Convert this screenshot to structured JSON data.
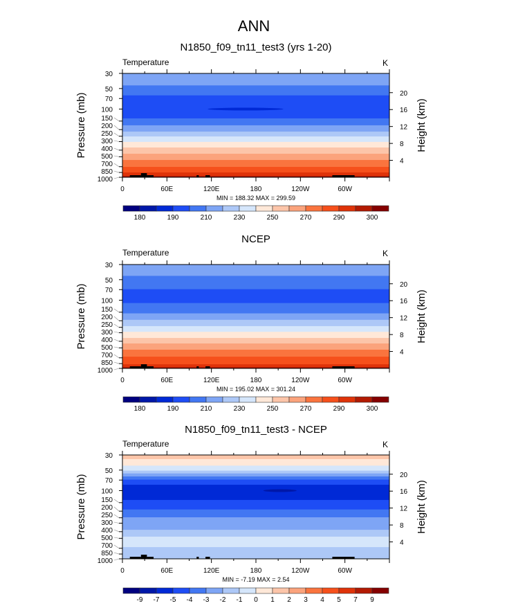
{
  "title": "ANN",
  "colors": [
    "#00007f",
    "#0017a8",
    "#0029d6",
    "#1e4df5",
    "#4277f2",
    "#7ea5f5",
    "#adc8f7",
    "#d5e6fb",
    "#ffe8d8",
    "#fcc5a9",
    "#fba37c",
    "#fa743e",
    "#f6501b",
    "#df3309",
    "#b31a03",
    "#850000"
  ],
  "chart_data": [
    {
      "type": "heatmap",
      "title": "N1850_f09_tn11_test3 (yrs 1-20)",
      "variable": "Temperature",
      "units": "K",
      "ylabel": "Pressure (mb)",
      "ylabel_right": "Height (km)",
      "stats": "MIN = 188.32  MAX = 299.59",
      "ylim": [
        1000,
        30
      ],
      "xlim": [
        0,
        360
      ],
      "bands": [
        [
          30,
          45,
          5
        ],
        [
          45,
          63,
          4
        ],
        [
          63,
          137,
          3
        ],
        [
          137,
          173,
          4
        ],
        [
          173,
          214,
          5
        ],
        [
          214,
          252,
          6
        ],
        [
          252,
          303,
          7
        ],
        [
          303,
          366,
          8
        ],
        [
          366,
          452,
          9
        ],
        [
          452,
          558,
          10
        ],
        [
          558,
          705,
          11
        ],
        [
          705,
          850,
          12
        ],
        [
          850,
          955,
          13
        ],
        [
          955,
          1000,
          14
        ]
      ],
      "features": [
        {
          "lon": [
            115,
            217
          ],
          "p": 100,
          "color": 2
        }
      ],
      "colorbar_labels": [
        "180",
        "190",
        "210",
        "230",
        "250",
        "270",
        "290",
        "300"
      ],
      "colorbar_step": 2
    },
    {
      "type": "heatmap",
      "title": "NCEP",
      "variable": "Temperature",
      "units": "K",
      "ylabel": "Pressure (mb)",
      "ylabel_right": "Height (km)",
      "stats": "MIN = 195.02  MAX = 301.24",
      "ylim": [
        1000,
        30
      ],
      "xlim": [
        0,
        360
      ],
      "bands": [
        [
          30,
          44,
          5
        ],
        [
          44,
          69,
          4
        ],
        [
          69,
          110,
          3
        ],
        [
          110,
          156,
          4
        ],
        [
          156,
          194,
          5
        ],
        [
          194,
          240,
          6
        ],
        [
          240,
          291,
          7
        ],
        [
          291,
          358,
          8
        ],
        [
          358,
          431,
          9
        ],
        [
          431,
          532,
          10
        ],
        [
          532,
          673,
          11
        ],
        [
          673,
          870,
          12
        ],
        [
          870,
          955,
          13
        ],
        [
          955,
          1000,
          14
        ]
      ],
      "features": [],
      "colorbar_labels": [
        "180",
        "190",
        "210",
        "230",
        "250",
        "270",
        "290",
        "300"
      ],
      "colorbar_step": 2
    },
    {
      "type": "heatmap",
      "title": "N1850_f09_tn11_test3 - NCEP",
      "variable": "Temperature",
      "units": "K",
      "ylabel": "Pressure (mb)",
      "ylabel_right": "Height (km)",
      "stats": "MIN =  -7.19  MAX =   2.54",
      "ylim": [
        1000,
        30
      ],
      "xlim": [
        0,
        360
      ],
      "bands": [
        [
          30,
          34.5,
          9
        ],
        [
          34.5,
          43,
          8
        ],
        [
          43,
          51,
          7
        ],
        [
          51,
          56,
          6
        ],
        [
          56,
          62,
          5
        ],
        [
          62,
          69,
          4
        ],
        [
          69,
          82,
          3
        ],
        [
          82,
          137,
          2
        ],
        [
          137,
          189,
          3
        ],
        [
          189,
          246,
          4
        ],
        [
          246,
          375,
          5
        ],
        [
          375,
          473,
          6
        ],
        [
          473,
          673,
          7
        ],
        [
          673,
          1000,
          6
        ]
      ],
      "features": [
        {
          "lon": [
            190,
            235
          ],
          "p": 100,
          "color": 1
        }
      ],
      "colorbar_labels": [
        "-9",
        "-7",
        "-5",
        "-4",
        "-3",
        "-2",
        "-1",
        "0",
        "1",
        "2",
        "3",
        "4",
        "5",
        "7",
        "9"
      ],
      "colorbar_step": 1
    }
  ],
  "axes": {
    "pressure_ticks": [
      "30",
      "50",
      "70",
      "100",
      "150",
      "200",
      "250",
      "300",
      "400",
      "500",
      "700",
      "850",
      "1000"
    ],
    "height_ticks": [
      "20",
      "16",
      "12",
      "8",
      "4"
    ],
    "lon_ticks": [
      {
        "lon": 0,
        "label": "0"
      },
      {
        "lon": 60,
        "label": "60E"
      },
      {
        "lon": 120,
        "label": "120E"
      },
      {
        "lon": 180,
        "label": "180"
      },
      {
        "lon": 240,
        "label": "120W"
      },
      {
        "lon": 300,
        "label": "60W"
      }
    ]
  }
}
